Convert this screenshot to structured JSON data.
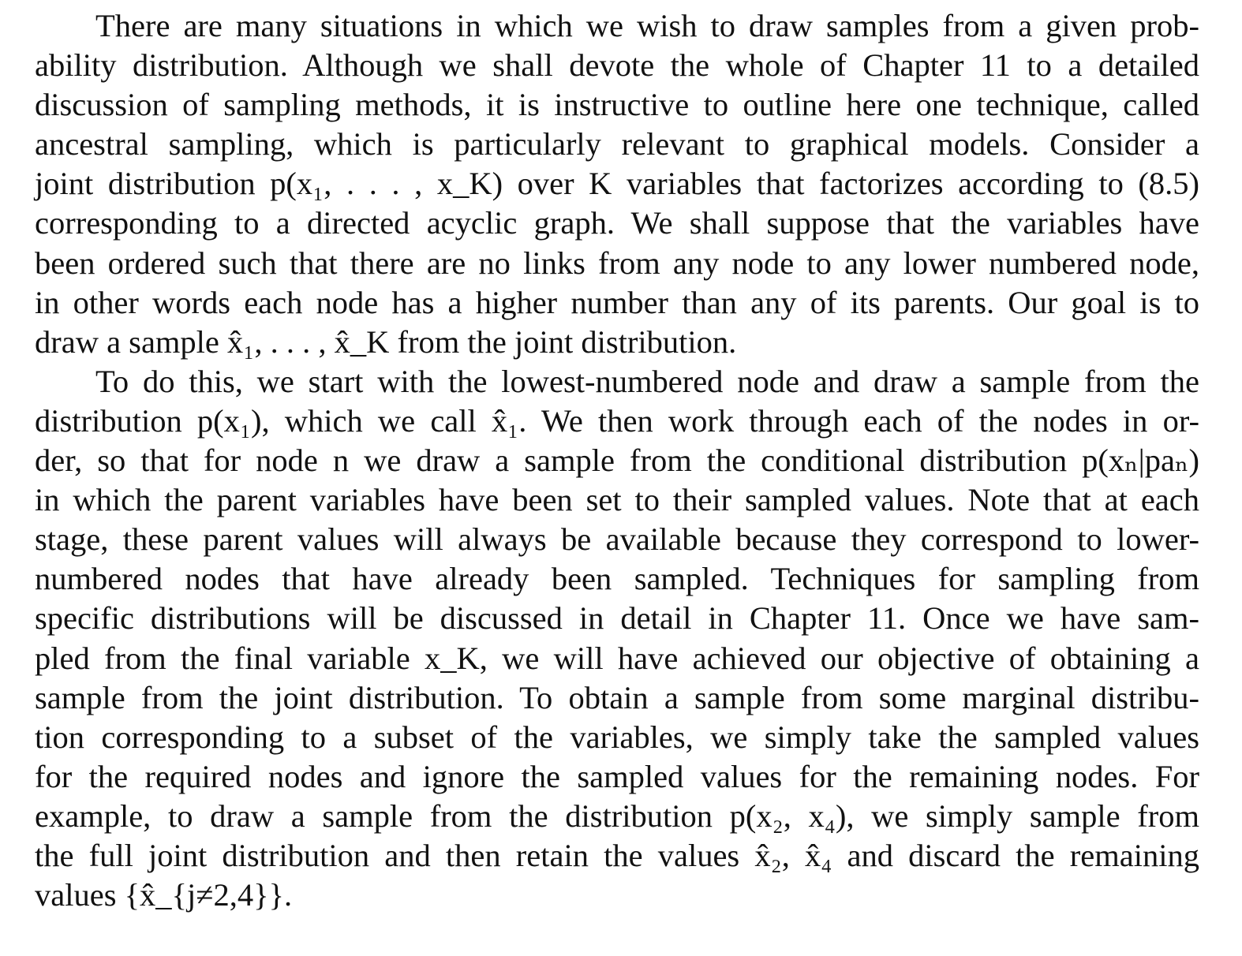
{
  "document": {
    "paragraphs": [
      {
        "lines": [
          "There are many situations in which we wish to draw samples from a given prob-",
          "ability distribution. Although we shall devote the whole of Chapter 11 to a detailed",
          "discussion of sampling methods, it is instructive to outline here one technique, called",
          "ancestral sampling, which is particularly relevant to graphical models. Consider a",
          "joint distribution p(x₁, . . . , x_K) over K variables that factorizes according to (8.5)",
          "corresponding to a directed acyclic graph. We shall suppose that the variables have",
          "been ordered such that there are no links from any node to any lower numbered node,",
          "in other words each node has a higher number than any of its parents. Our goal is to",
          "draw a sample x̂₁, . . . , x̂_K from the joint distribution."
        ]
      },
      {
        "lines": [
          "To do this, we start with the lowest-numbered node and draw a sample from the",
          "distribution p(x₁), which we call x̂₁. We then work through each of the nodes in or-",
          "der, so that for node n we draw a sample from the conditional distribution p(xₙ|paₙ)",
          "in which the parent variables have been set to their sampled values. Note that at each",
          "stage, these parent values will always be available because they correspond to lower-",
          "numbered nodes that have already been sampled. Techniques for sampling from",
          "specific distributions will be discussed in detail in Chapter 11. Once we have sam-",
          "pled from the final variable x_K, we will have achieved our objective of obtaining a",
          "sample from the joint distribution. To obtain a sample from some marginal distribu-",
          "tion corresponding to a subset of the variables, we simply take the sampled values",
          "for the required nodes and ignore the sampled values for the remaining nodes. For",
          "example, to draw a sample from the distribution p(x₂, x₄), we simply sample from",
          "the full joint distribution and then retain the values x̂₂, x̂₄ and discard the remaining",
          "values {x̂_{j≠2,4}}."
        ]
      }
    ]
  }
}
